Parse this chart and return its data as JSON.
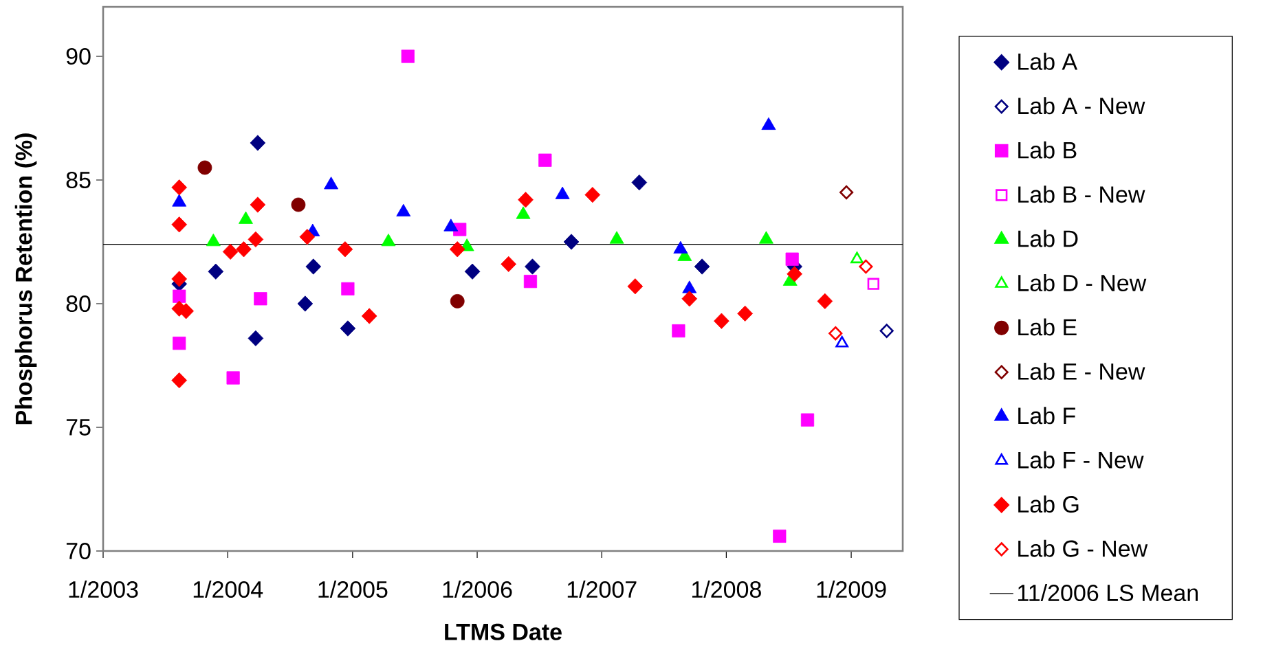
{
  "chart_data": {
    "type": "scatter",
    "xlabel": "LTMS Date",
    "ylabel": "Phosphorus Retention (%)",
    "xlim": [
      "2003-01-01",
      "2009-06-01"
    ],
    "xticks": [
      {
        "value": "2003-01-01",
        "label": "1/2003"
      },
      {
        "value": "2004-01-01",
        "label": "1/2004"
      },
      {
        "value": "2005-01-01",
        "label": "1/2005"
      },
      {
        "value": "2006-01-01",
        "label": "1/2006"
      },
      {
        "value": "2007-01-01",
        "label": "1/2007"
      },
      {
        "value": "2008-01-01",
        "label": "1/2008"
      },
      {
        "value": "2009-01-01",
        "label": "1/2009"
      }
    ],
    "ylim": [
      70,
      92
    ],
    "yticks": [
      70,
      75,
      80,
      85,
      90
    ],
    "grid": false,
    "legend": "right",
    "ref_lines": [
      {
        "axis": "y",
        "value": 82.4,
        "label": "11/2006 LS Mean",
        "color": "#000000"
      }
    ],
    "series": [
      {
        "name": "Lab A",
        "color": "#000080",
        "marker": "diamond",
        "x": [
          "2003-08-12",
          "2003-11-27",
          "2004-03-29",
          "2004-03-23",
          "2004-08-15",
          "2004-09-08",
          "2004-12-18",
          "2005-12-18",
          "2006-06-12",
          "2006-10-04",
          "2007-04-21",
          "2007-10-22",
          "2008-07-19"
        ],
        "values": [
          80.8,
          81.3,
          86.5,
          78.6,
          80.0,
          81.5,
          79.0,
          81.3,
          81.5,
          82.5,
          84.9,
          81.5,
          81.5
        ]
      },
      {
        "name": "Lab A - New",
        "color": "#000080",
        "marker": "diamond-open",
        "x": [
          "2009-04-15"
        ],
        "values": [
          78.9
        ]
      },
      {
        "name": "Lab B",
        "color": "#ff00ff",
        "marker": "square",
        "x": [
          "2003-08-12",
          "2003-08-12",
          "2004-01-17",
          "2004-04-06",
          "2004-12-18",
          "2005-06-12",
          "2005-11-11",
          "2006-07-19",
          "2006-06-06",
          "2007-08-14",
          "2008-07-12",
          "2008-08-26",
          "2008-06-05"
        ],
        "values": [
          80.3,
          78.4,
          77.0,
          80.2,
          80.6,
          90.0,
          83.0,
          85.8,
          80.9,
          78.9,
          81.8,
          75.3,
          70.6
        ]
      },
      {
        "name": "Lab B - New",
        "color": "#ff00ff",
        "marker": "square-open",
        "x": [
          "2009-03-07"
        ],
        "values": [
          80.8
        ]
      },
      {
        "name": "Lab D",
        "color": "#00ff00",
        "marker": "triangle",
        "x": [
          "2003-11-20",
          "2004-02-23",
          "2005-04-16",
          "2005-12-02",
          "2006-05-16",
          "2007-02-14",
          "2007-09-01",
          "2008-04-27",
          "2008-07-06"
        ],
        "values": [
          82.5,
          83.4,
          82.5,
          82.3,
          83.6,
          82.6,
          81.9,
          82.6,
          80.9
        ]
      },
      {
        "name": "Lab D - New",
        "color": "#00ff00",
        "marker": "triangle-open",
        "x": [
          "2009-01-18"
        ],
        "values": [
          81.8
        ]
      },
      {
        "name": "Lab E",
        "color": "#800000",
        "marker": "circle",
        "x": [
          "2003-10-26",
          "2004-07-26",
          "2005-11-04"
        ],
        "values": [
          85.5,
          84.0,
          80.1
        ]
      },
      {
        "name": "Lab E - New",
        "color": "#800000",
        "marker": "diamond-open",
        "x": [
          "2008-12-18"
        ],
        "values": [
          84.5
        ]
      },
      {
        "name": "Lab F",
        "color": "#0000ff",
        "marker": "triangle",
        "x": [
          "2003-08-12",
          "2004-10-30",
          "2004-09-06",
          "2005-05-30",
          "2005-10-16",
          "2006-09-08",
          "2007-08-20",
          "2007-09-15",
          "2008-05-04"
        ],
        "values": [
          84.1,
          84.8,
          82.9,
          83.7,
          83.1,
          84.4,
          82.2,
          80.6,
          87.2
        ]
      },
      {
        "name": "Lab F - New",
        "color": "#0000ff",
        "marker": "triangle-open",
        "x": [
          "2008-12-05"
        ],
        "values": [
          78.4
        ]
      },
      {
        "name": "Lab G",
        "color": "#ff0000",
        "marker": "diamond",
        "x": [
          "2003-08-12",
          "2003-08-12",
          "2003-08-12",
          "2003-08-12",
          "2003-09-01",
          "2003-08-12",
          "2004-01-09",
          "2004-02-17",
          "2004-03-23",
          "2004-03-29",
          "2004-08-21",
          "2004-12-10",
          "2005-02-19",
          "2005-11-04",
          "2006-04-03",
          "2006-05-23",
          "2006-12-05",
          "2007-04-09",
          "2007-09-15",
          "2007-12-18",
          "2008-02-25",
          "2008-07-19",
          "2008-10-16"
        ],
        "values": [
          84.7,
          83.2,
          81.0,
          79.8,
          79.7,
          76.9,
          82.1,
          82.2,
          82.6,
          84.0,
          82.7,
          82.2,
          79.5,
          82.2,
          81.6,
          84.2,
          84.4,
          80.7,
          80.2,
          79.3,
          79.6,
          81.2,
          80.1
        ]
      },
      {
        "name": "Lab G - New",
        "color": "#ff0000",
        "marker": "diamond-open",
        "x": [
          "2008-11-16",
          "2009-02-13"
        ],
        "values": [
          78.8,
          81.5
        ]
      }
    ]
  }
}
